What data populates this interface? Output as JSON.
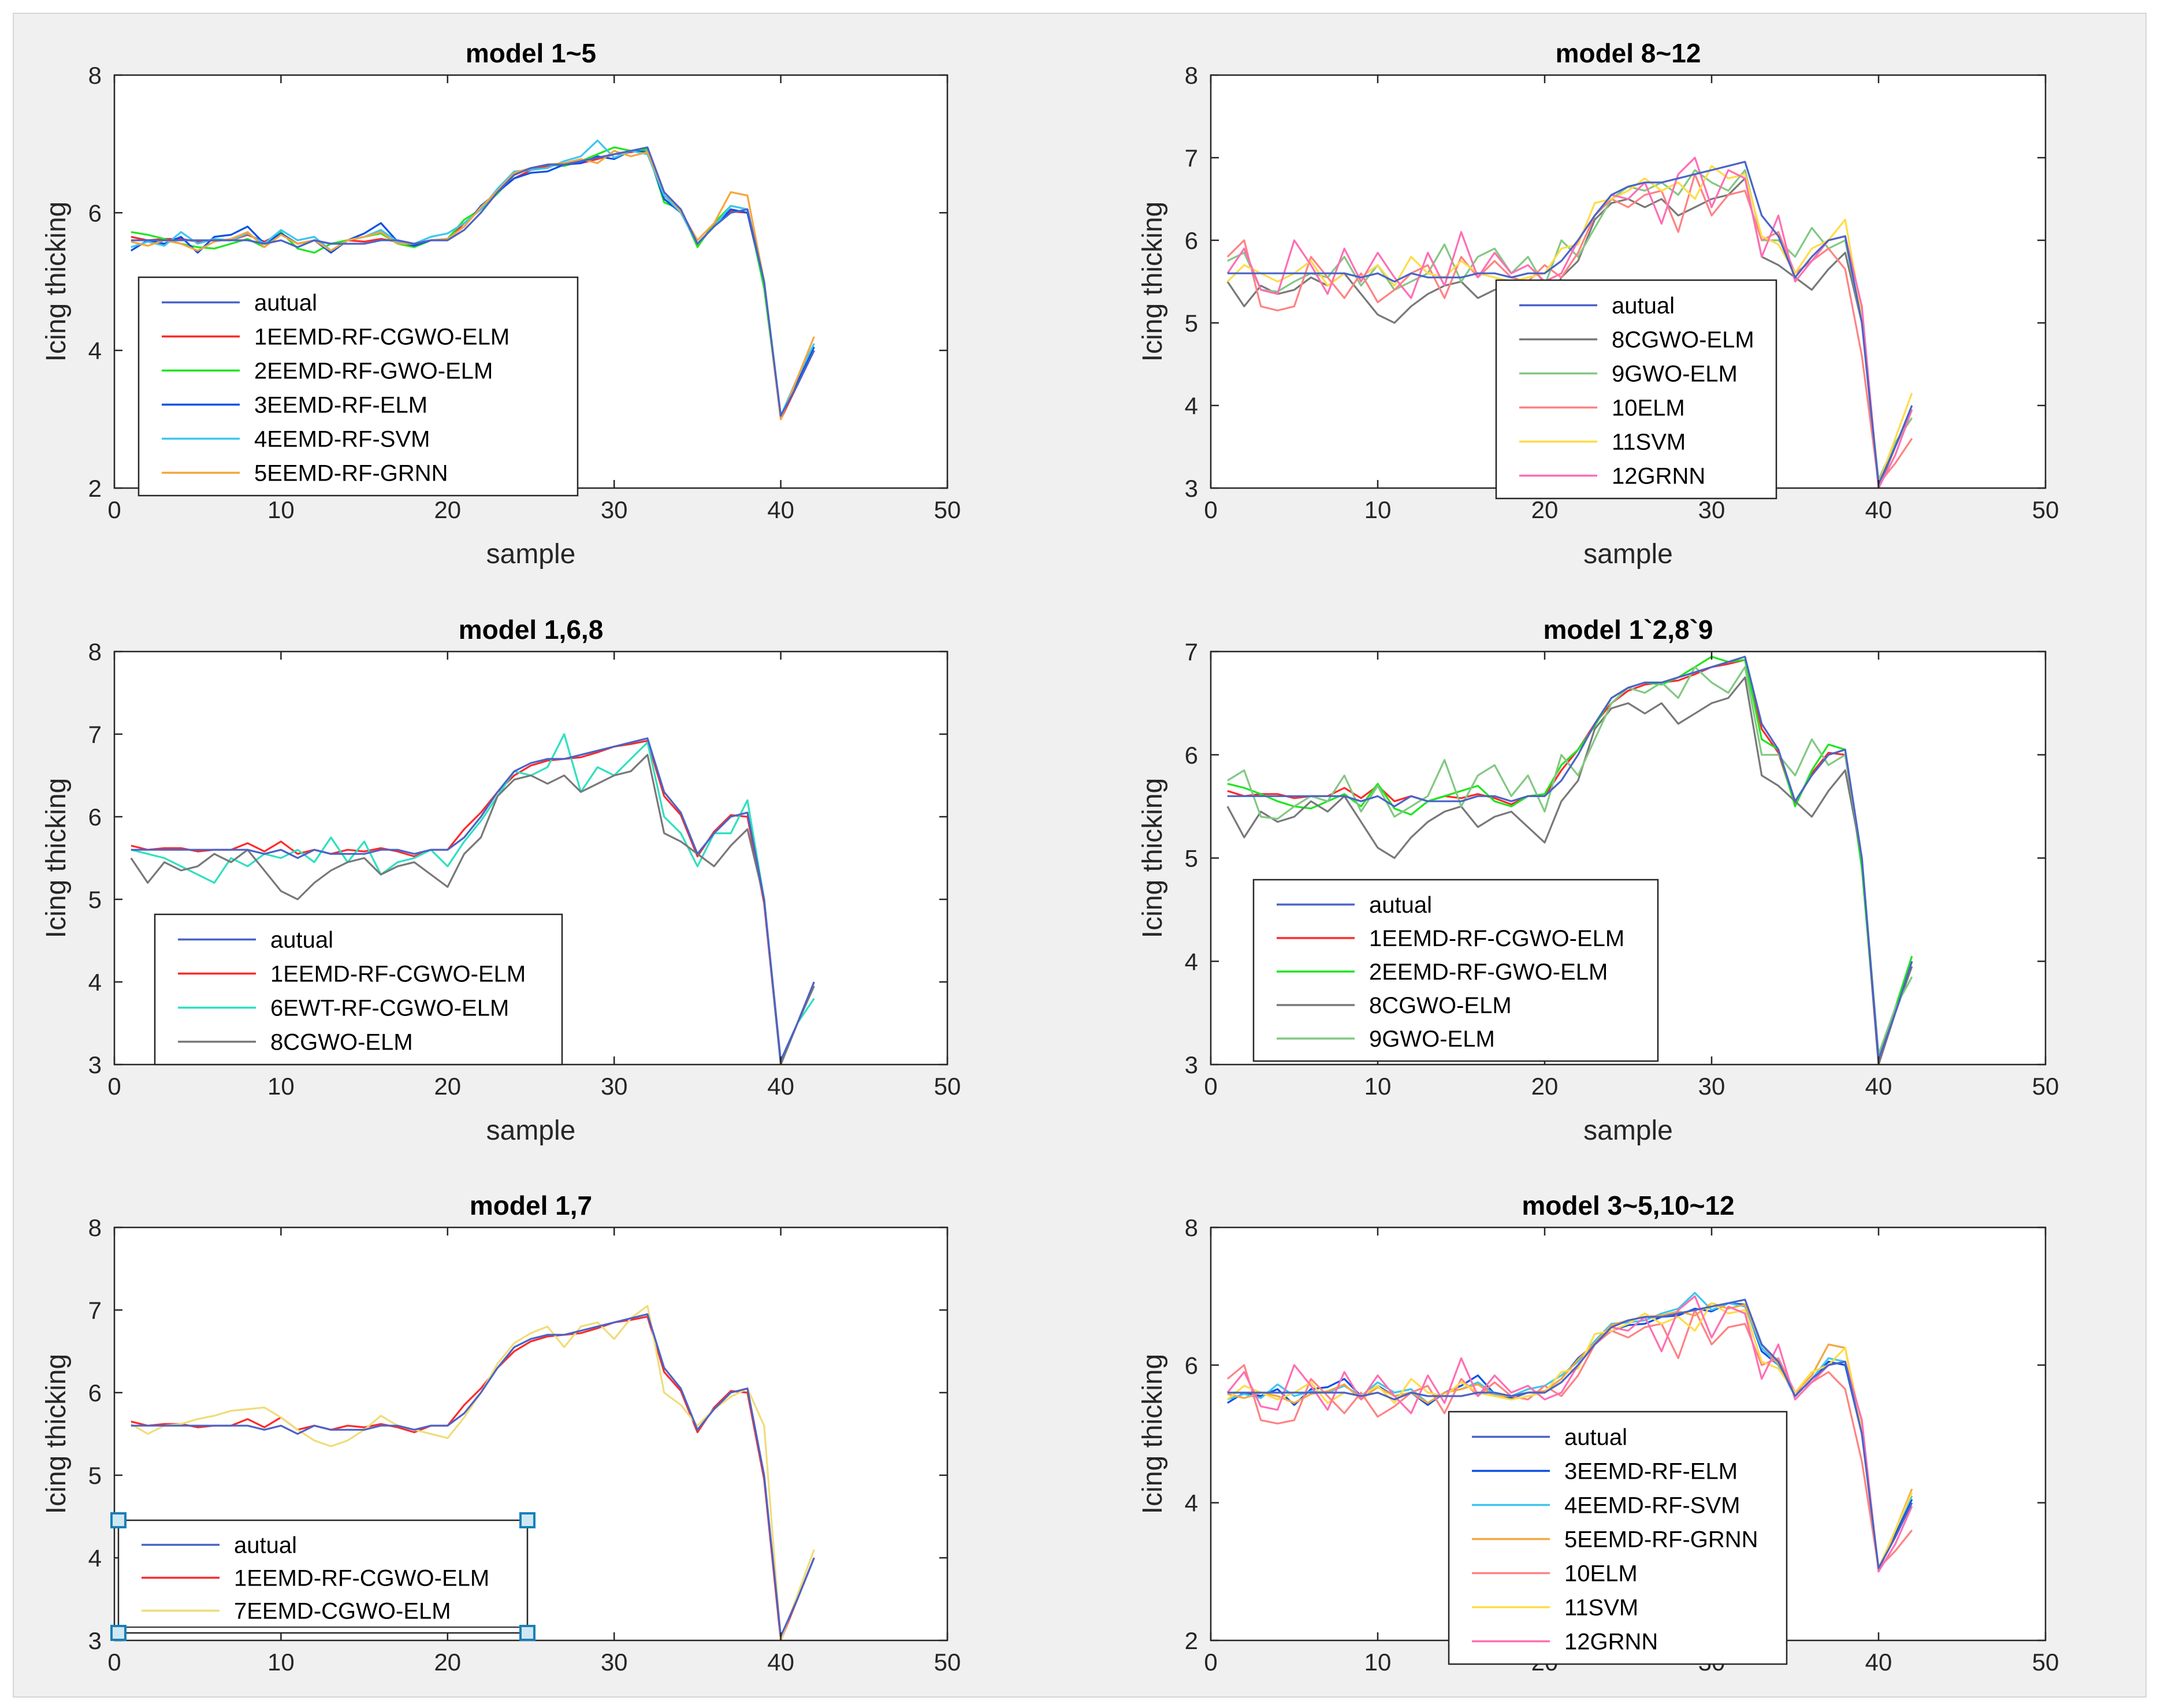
{
  "colors": {
    "autual": "#4a63c8",
    "1EEMD-RF-CGWO-ELM": "#ff2a2a",
    "2EEMD-RF-GWO-ELM": "#1ee61e",
    "3EEMD-RF-ELM": "#0a50e6",
    "4EEMD-RF-SVM": "#3cc6f0",
    "5EEMD-RF-GRNN": "#f7a53c",
    "6EWT-RF-CGWO-ELM": "#2ee0c0",
    "7EEMD-CGWO-ELM": "#f0dc78",
    "8CGWO-ELM": "#787878",
    "9GWO-ELM": "#82c882",
    "10ELM": "#ff8282",
    "11SVM": "#ffdc46",
    "12GRNN": "#ff6eb4"
  },
  "chart_data": [
    {
      "type": "line",
      "title": "model 1~5",
      "xlabel": "sample",
      "ylabel": "Icing thicking",
      "xlim": [
        0,
        50
      ],
      "ylim": [
        2,
        8
      ],
      "xticks": [
        "0",
        "10",
        "20",
        "30",
        "40",
        "50"
      ],
      "yticks": [
        "2",
        "4",
        "6",
        "8"
      ],
      "legend": {
        "position": "lower-left",
        "entries": [
          "autual",
          "1EEMD-RF-CGWO-ELM",
          "2EEMD-RF-GWO-ELM",
          "3EEMD-RF-ELM",
          "4EEMD-RF-SVM",
          "5EEMD-RF-GRNN"
        ]
      },
      "series": [
        "autual",
        "1EEMD-RF-CGWO-ELM",
        "2EEMD-RF-GWO-ELM",
        "3EEMD-RF-ELM",
        "4EEMD-RF-SVM",
        "5EEMD-RF-GRNN"
      ]
    },
    {
      "type": "line",
      "title": "model 8~12",
      "xlabel": "sample",
      "ylabel": "Icing thicking",
      "xlim": [
        0,
        50
      ],
      "ylim": [
        3,
        8
      ],
      "xticks": [
        "0",
        "10",
        "20",
        "30",
        "40",
        "50"
      ],
      "yticks": [
        "3",
        "4",
        "5",
        "6",
        "7",
        "8"
      ],
      "legend": {
        "position": "lower-center",
        "entries": [
          "autual",
          "8CGWO-ELM",
          "9GWO-ELM",
          "10ELM",
          "11SVM",
          "12GRNN"
        ]
      },
      "series": [
        "autual",
        "8CGWO-ELM",
        "9GWO-ELM",
        "10ELM",
        "11SVM",
        "12GRNN"
      ]
    },
    {
      "type": "line",
      "title": "model 1,6,8",
      "xlabel": "sample",
      "ylabel": "Icing thicking",
      "xlim": [
        0,
        50
      ],
      "ylim": [
        3,
        8
      ],
      "xticks": [
        "0",
        "10",
        "20",
        "30",
        "40",
        "50"
      ],
      "yticks": [
        "3",
        "4",
        "5",
        "6",
        "7",
        "8"
      ],
      "legend": {
        "position": "lower-left",
        "entries": [
          "autual",
          "1EEMD-RF-CGWO-ELM",
          "6EWT-RF-CGWO-ELM",
          "8CGWO-ELM"
        ]
      },
      "series": [
        "autual",
        "1EEMD-RF-CGWO-ELM",
        "6EWT-RF-CGWO-ELM",
        "8CGWO-ELM"
      ]
    },
    {
      "type": "line",
      "title": "model 1`2,8`9",
      "xlabel": "sample",
      "ylabel": "Icing thicking",
      "xlim": [
        0,
        50
      ],
      "ylim": [
        3,
        7
      ],
      "xticks": [
        "0",
        "10",
        "20",
        "30",
        "40",
        "50"
      ],
      "yticks": [
        "3",
        "4",
        "5",
        "6",
        "7"
      ],
      "legend": {
        "position": "lower-left",
        "entries": [
          "autual",
          "1EEMD-RF-CGWO-ELM",
          "2EEMD-RF-GWO-ELM",
          "8CGWO-ELM",
          "9GWO-ELM"
        ]
      },
      "series": [
        "autual",
        "1EEMD-RF-CGWO-ELM",
        "2EEMD-RF-GWO-ELM",
        "8CGWO-ELM",
        "9GWO-ELM"
      ]
    },
    {
      "type": "line",
      "title": "model 1,7",
      "xlabel": "",
      "ylabel": "Icing thicking",
      "xlim": [
        0,
        50
      ],
      "ylim": [
        3,
        8
      ],
      "xticks": [
        "0",
        "10",
        "20",
        "30",
        "40",
        "50"
      ],
      "yticks": [
        "3",
        "4",
        "5",
        "6",
        "7",
        "8"
      ],
      "legend": {
        "position": "lower-left",
        "selected": true,
        "entries": [
          "autual",
          "1EEMD-RF-CGWO-ELM",
          "7EEMD-CGWO-ELM"
        ]
      },
      "series": [
        "autual",
        "1EEMD-RF-CGWO-ELM",
        "7EEMD-CGWO-ELM"
      ]
    },
    {
      "type": "line",
      "title": "model 3~5,10~12",
      "xlabel": "",
      "ylabel": "Icing thicking",
      "xlim": [
        0,
        50
      ],
      "ylim": [
        2,
        8
      ],
      "xticks": [
        "0",
        "10",
        "20",
        "30",
        "40",
        "50"
      ],
      "yticks": [
        "2",
        "4",
        "6",
        "8"
      ],
      "legend": {
        "position": "lower-center",
        "entries": [
          "autual",
          "3EEMD-RF-ELM",
          "4EEMD-RF-SVM",
          "5EEMD-RF-GRNN",
          "10ELM",
          "11SVM",
          "12GRNN"
        ]
      },
      "series": [
        "autual",
        "3EEMD-RF-ELM",
        "4EEMD-RF-SVM",
        "5EEMD-RF-GRNN",
        "10ELM",
        "11SVM",
        "12GRNN"
      ]
    }
  ],
  "series_values": {
    "x": [
      1,
      2,
      3,
      4,
      5,
      6,
      7,
      8,
      9,
      10,
      11,
      12,
      13,
      14,
      15,
      16,
      17,
      18,
      19,
      20,
      21,
      22,
      23,
      24,
      25,
      26,
      27,
      28,
      29,
      30,
      31,
      32,
      33,
      34,
      35,
      36,
      37,
      38,
      39,
      40,
      41,
      42
    ],
    "autual": [
      5.6,
      5.6,
      5.6,
      5.6,
      5.6,
      5.6,
      5.6,
      5.6,
      5.55,
      5.6,
      5.5,
      5.6,
      5.55,
      5.55,
      5.55,
      5.6,
      5.6,
      5.55,
      5.6,
      5.6,
      5.75,
      6.0,
      6.3,
      6.55,
      6.65,
      6.7,
      6.7,
      6.75,
      6.8,
      6.85,
      6.9,
      6.95,
      6.3,
      6.05,
      5.55,
      5.8,
      6.0,
      6.05,
      5.0,
      3.05,
      3.5,
      4.0
    ],
    "1EEMD-RF-CGWO-ELM": [
      5.65,
      5.6,
      5.62,
      5.62,
      5.58,
      5.6,
      5.6,
      5.68,
      5.58,
      5.7,
      5.55,
      5.6,
      5.55,
      5.6,
      5.58,
      5.62,
      5.58,
      5.52,
      5.6,
      5.6,
      5.85,
      6.05,
      6.3,
      6.5,
      6.62,
      6.68,
      6.7,
      6.72,
      6.78,
      6.85,
      6.88,
      6.92,
      6.25,
      6.02,
      5.52,
      5.82,
      6.02,
      6.0,
      4.95,
      3.0,
      3.5,
      4.0
    ],
    "2EEMD-RF-GWO-ELM": [
      5.72,
      5.68,
      5.62,
      5.55,
      5.5,
      5.48,
      5.55,
      5.62,
      5.5,
      5.72,
      5.48,
      5.42,
      5.55,
      5.6,
      5.65,
      5.7,
      5.55,
      5.5,
      5.6,
      5.62,
      5.9,
      6.05,
      6.28,
      6.55,
      6.65,
      6.7,
      6.68,
      6.75,
      6.85,
      6.95,
      6.9,
      6.92,
      6.15,
      6.05,
      5.5,
      5.85,
      6.1,
      6.05,
      4.9,
      3.05,
      3.55,
      4.05
    ],
    "3EEMD-RF-ELM": [
      5.45,
      5.6,
      5.55,
      5.65,
      5.42,
      5.65,
      5.68,
      5.8,
      5.55,
      5.7,
      5.55,
      5.6,
      5.42,
      5.6,
      5.7,
      5.85,
      5.58,
      5.52,
      5.6,
      5.62,
      5.8,
      6.1,
      6.3,
      6.5,
      6.58,
      6.6,
      6.7,
      6.72,
      6.82,
      6.78,
      6.9,
      6.88,
      6.2,
      6.0,
      5.55,
      5.8,
      6.05,
      6.0,
      5.0,
      3.05,
      3.55,
      4.05
    ],
    "4EEMD-RF-SVM": [
      5.5,
      5.58,
      5.52,
      5.72,
      5.55,
      5.62,
      5.6,
      5.7,
      5.55,
      5.75,
      5.6,
      5.65,
      5.45,
      5.6,
      5.65,
      5.75,
      5.58,
      5.55,
      5.65,
      5.7,
      5.85,
      6.05,
      6.35,
      6.6,
      6.62,
      6.65,
      6.75,
      6.82,
      7.05,
      6.8,
      6.9,
      6.85,
      6.25,
      6.0,
      5.55,
      5.8,
      6.1,
      6.05,
      5.0,
      3.05,
      3.6,
      4.1
    ],
    "5EEMD-RF-GRNN": [
      5.58,
      5.52,
      5.6,
      5.55,
      5.45,
      5.58,
      5.62,
      5.72,
      5.5,
      5.68,
      5.55,
      5.6,
      5.45,
      5.6,
      5.65,
      5.72,
      5.55,
      5.55,
      5.6,
      5.62,
      5.8,
      6.08,
      6.32,
      6.58,
      6.65,
      6.7,
      6.72,
      6.78,
      6.72,
      6.9,
      6.82,
      6.88,
      6.3,
      6.02,
      5.6,
      5.85,
      6.3,
      6.25,
      5.0,
      3.0,
      3.6,
      4.2
    ],
    "6EWT-RF-CGWO-ELM": [
      5.6,
      5.55,
      5.5,
      5.4,
      5.3,
      5.2,
      5.5,
      5.4,
      5.55,
      5.5,
      5.6,
      5.45,
      5.75,
      5.45,
      5.7,
      5.3,
      5.45,
      5.5,
      5.6,
      5.4,
      5.7,
      5.95,
      6.25,
      6.55,
      6.5,
      6.6,
      7.0,
      6.3,
      6.6,
      6.5,
      6.7,
      6.9,
      6.0,
      5.8,
      5.4,
      5.8,
      5.8,
      6.2,
      5.0,
      3.0,
      3.5,
      3.8
    ],
    "7EEMD-CGWO-ELM": [
      5.62,
      5.5,
      5.6,
      5.62,
      5.68,
      5.72,
      5.78,
      5.8,
      5.82,
      5.7,
      5.55,
      5.42,
      5.35,
      5.42,
      5.55,
      5.72,
      5.6,
      5.55,
      5.5,
      5.45,
      5.7,
      6.0,
      6.35,
      6.6,
      6.72,
      6.8,
      6.55,
      6.8,
      6.85,
      6.65,
      6.9,
      7.05,
      6.0,
      5.85,
      5.6,
      5.8,
      5.95,
      6.05,
      5.6,
      3.0,
      3.55,
      4.1
    ],
    "8CGWO-ELM": [
      5.5,
      5.2,
      5.45,
      5.35,
      5.4,
      5.55,
      5.45,
      5.6,
      5.35,
      5.1,
      5.0,
      5.2,
      5.35,
      5.45,
      5.5,
      5.3,
      5.4,
      5.45,
      5.3,
      5.15,
      5.55,
      5.75,
      6.25,
      6.45,
      6.5,
      6.4,
      6.5,
      6.3,
      6.4,
      6.5,
      6.55,
      6.75,
      5.8,
      5.7,
      5.55,
      5.4,
      5.65,
      5.85,
      5.0,
      3.0,
      3.5,
      3.95
    ],
    "9GWO-ELM": [
      5.75,
      5.85,
      5.4,
      5.38,
      5.5,
      5.6,
      5.55,
      5.8,
      5.45,
      5.7,
      5.4,
      5.5,
      5.6,
      5.95,
      5.5,
      5.8,
      5.9,
      5.6,
      5.8,
      5.45,
      6.0,
      5.8,
      6.15,
      6.5,
      6.65,
      6.6,
      6.7,
      6.55,
      6.85,
      6.7,
      6.6,
      6.85,
      6.0,
      6.0,
      5.8,
      6.15,
      5.9,
      6.0,
      5.0,
      3.1,
      3.55,
      3.85
    ],
    "10ELM": [
      5.8,
      6.0,
      5.2,
      5.15,
      5.2,
      5.8,
      5.55,
      5.3,
      5.6,
      5.25,
      5.4,
      5.6,
      5.7,
      5.3,
      5.8,
      5.55,
      5.75,
      5.55,
      5.5,
      5.7,
      5.55,
      5.85,
      6.3,
      6.5,
      6.4,
      6.55,
      6.6,
      6.1,
      6.8,
      6.3,
      6.55,
      6.6,
      6.0,
      6.1,
      5.6,
      5.75,
      5.9,
      5.65,
      4.6,
      3.05,
      3.3,
      3.6
    ],
    "11SVM": [
      5.5,
      5.7,
      5.6,
      5.5,
      5.6,
      5.75,
      5.45,
      5.6,
      5.55,
      5.7,
      5.45,
      5.8,
      5.6,
      5.55,
      5.75,
      5.6,
      5.55,
      5.5,
      5.55,
      5.6,
      5.9,
      5.95,
      6.45,
      6.5,
      6.6,
      6.75,
      6.6,
      6.7,
      6.5,
      6.9,
      6.75,
      6.8,
      6.05,
      5.95,
      5.6,
      5.9,
      6.0,
      6.25,
      5.1,
      3.05,
      3.6,
      4.15
    ],
    "12GRNN": [
      5.6,
      5.9,
      5.4,
      5.35,
      6.0,
      5.7,
      5.35,
      5.9,
      5.5,
      5.85,
      5.55,
      5.3,
      5.85,
      5.45,
      6.1,
      5.55,
      5.85,
      5.6,
      5.7,
      5.5,
      5.6,
      6.0,
      6.3,
      6.55,
      6.5,
      6.7,
      6.2,
      6.8,
      7.0,
      6.4,
      6.85,
      6.75,
      5.8,
      6.3,
      5.5,
      5.75,
      6.0,
      6.05,
      5.2,
      3.0,
      3.4,
      3.95
    ]
  }
}
